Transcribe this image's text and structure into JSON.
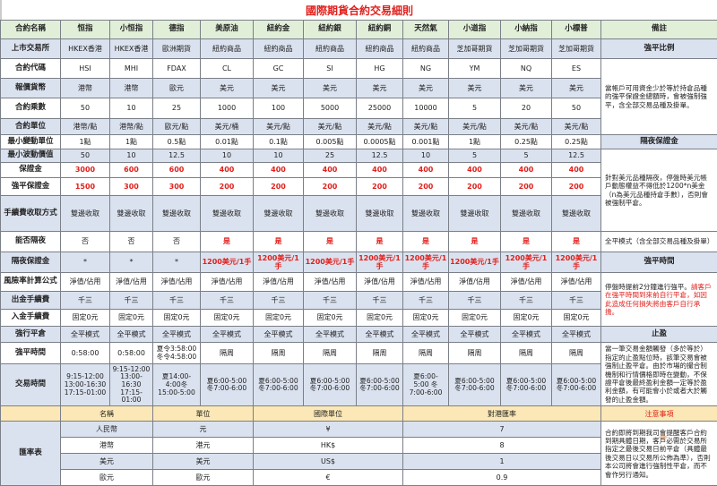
{
  "title": "國際期貨合約交易細則",
  "header": {
    "label": "合約名稱",
    "columns": [
      "恒指",
      "小恒指",
      "德指",
      "美原油",
      "紐約金",
      "紐約銀",
      "紐約銅",
      "天然氣",
      "小道指",
      "小納指",
      "小標普"
    ],
    "remark": "備註"
  },
  "rows": [
    {
      "label": "上市交易所",
      "values": [
        "HKEX香港",
        "HKEX香港",
        "歐洲期貨",
        "紐約商品",
        "紐約商品",
        "紐約商品",
        "紐約商品",
        "紐約商品",
        "芝加哥期貨",
        "芝加哥期貨",
        "芝加哥期貨"
      ],
      "style": "blue"
    },
    {
      "label": "合約代碼",
      "values": [
        "HSI",
        "MHI",
        "FDAX",
        "CL",
        "GC",
        "SI",
        "HG",
        "NG",
        "YM",
        "NQ",
        "ES"
      ],
      "style": "white"
    },
    {
      "label": "報價貨幣",
      "values": [
        "港幣",
        "港幣",
        "歐元",
        "美元",
        "美元",
        "美元",
        "美元",
        "美元",
        "美元",
        "美元",
        "美元"
      ],
      "style": "blue"
    },
    {
      "label": "合約乘數",
      "values": [
        "50",
        "10",
        "25",
        "1000",
        "100",
        "5000",
        "25000",
        "10000",
        "5",
        "20",
        "50"
      ],
      "style": "white"
    },
    {
      "label": "合約單位",
      "values": [
        "港幣/點",
        "港幣/點",
        "歐元/點",
        "美元/桶",
        "美元/點",
        "美元/點",
        "美元/點",
        "美元/點",
        "美元/點",
        "美元/點",
        "美元/點"
      ],
      "style": "blue"
    },
    {
      "label": "最小變動單位",
      "values": [
        "1點",
        "1點",
        "0.5點",
        "0.01點",
        "0.1點",
        "0.005點",
        "0.0005點",
        "0.001點",
        "1點",
        "0.25點",
        "0.25點"
      ],
      "style": "white"
    },
    {
      "label": "最小波動價值",
      "values": [
        "50",
        "10",
        "12.5",
        "10",
        "10",
        "25",
        "12.5",
        "10",
        "5",
        "5",
        "12.5"
      ],
      "style": "blue"
    },
    {
      "label": "保證金",
      "values": [
        "3000",
        "600",
        "600",
        "400",
        "400",
        "400",
        "400",
        "400",
        "400",
        "400",
        "400"
      ],
      "style": "white",
      "red": true
    },
    {
      "label": "強平保證金",
      "values": [
        "1500",
        "300",
        "300",
        "200",
        "200",
        "200",
        "200",
        "200",
        "200",
        "200",
        "200"
      ],
      "style": "white",
      "red": true
    },
    {
      "label": "手續費收取方式",
      "values": [
        "雙邊收取",
        "雙邊收取",
        "雙邊收取",
        "雙邊收取",
        "雙邊收取",
        "雙邊收取",
        "雙邊收取",
        "雙邊收取",
        "雙邊收取",
        "雙邊收取",
        "雙邊收取"
      ],
      "style": "blue"
    },
    {
      "label": "能否隔夜",
      "values": [
        "否",
        "否",
        "否",
        "是",
        "是",
        "是",
        "是",
        "是",
        "是",
        "是",
        "是"
      ],
      "style": "white",
      "redValue": "是"
    },
    {
      "label": "隔夜保證金",
      "values": [
        "*",
        "*",
        "*",
        "1200美元/1手",
        "1200美元/1手",
        "1200美元/1手",
        "1200美元/1手",
        "1200美元/1手",
        "1200美元/1手",
        "1200美元/1手",
        "1200美元/1手"
      ],
      "style": "blue",
      "redValue": "1200美元/1手"
    },
    {
      "label": "風險率計算公式",
      "values": [
        "淨值/佔用",
        "淨值/佔用",
        "淨值/佔用",
        "淨值/佔用",
        "淨值/佔用",
        "淨值/佔用",
        "淨值/佔用",
        "淨值/佔用",
        "淨值/佔用",
        "淨值/佔用",
        "淨值/佔用"
      ],
      "style": "white"
    },
    {
      "label": "出金手續費",
      "values": [
        "千三",
        "千三",
        "千三",
        "千三",
        "千三",
        "千三",
        "千三",
        "千三",
        "千三",
        "千三",
        "千三"
      ],
      "style": "blue"
    },
    {
      "label": "入金手續費",
      "values": [
        "固定0元",
        "固定0元",
        "固定0元",
        "固定0元",
        "固定0元",
        "固定0元",
        "固定0元",
        "固定0元",
        "固定0元",
        "固定0元",
        "固定0元"
      ],
      "style": "white"
    },
    {
      "label": "強行平倉",
      "values": [
        "全平模式",
        "全平模式",
        "全平模式",
        "全平模式",
        "全平模式",
        "全平模式",
        "全平模式",
        "全平模式",
        "全平模式",
        "全平模式",
        "全平模式"
      ],
      "style": "blue"
    },
    {
      "label": "強平時間",
      "values": [
        "0:58:00",
        "0:58:00",
        "夏令3:58:00\n冬令4:58:00",
        "隔周",
        "隔周",
        "隔周",
        "隔周",
        "隔周",
        "隔周",
        "隔周",
        "隔周"
      ],
      "style": "white"
    },
    {
      "label": "交易時間",
      "values": [
        "9:15-12:00\n13:00-16:30\n17:15-01:00",
        "9:15-12:00\n13:00-\n16:30\n17:15-\n01:00",
        "夏14:00-\n4:00冬\n15:00-5:00",
        "夏6:00-5:00\n冬7:00-6:00",
        "夏6:00-5:00\n冬7:00-6:00",
        "夏6:00-5:00\n冬7:00-6:00",
        "夏6:00-5:00\n冬7:00-6:00",
        "夏6:00-\n5:00 冬\n7:00-6:00",
        "夏6:00-5:00\n冬7:00-6:00",
        "夏6:00-5:00\n冬7:00-6:00",
        "夏6:00-5:00\n冬7:00-6:00"
      ],
      "style": "blue"
    }
  ],
  "remarks": [
    {
      "heading": "強平比例",
      "text": "當帳戶可用資金少於等於持倉品種的強平保證金總額時，會被強制強平，含全部交易品種及掛單。"
    },
    {
      "heading": "隔夜保證金",
      "text": "針對美元品種隔夜，停盤時美元帳戶動態權益不得低於1200*n美金（n為美元品種持倉手數），否則會被強制平倉。"
    },
    {
      "heading": "強平模式",
      "text": "全平模式（含全部交易品種及掛單）"
    },
    {
      "heading": "強平時間",
      "text": "停盤時提前2分鐘進行強平。",
      "text_red": "請客戶在強平時間到來前自行平倉，如因此造成任何損失將由客戶自行承擔。"
    },
    {
      "heading": "止盈",
      "text": "當一筆交易金額觸發（多於等於）指定的止盈點位時，該筆交易會被強制止盈平倉。由於市場的撮合制機制和行情價格即時在變動，不保證平倉後最終盈利金額一定等於盈利金額，有可能會小於或者大於觸發的止盈金額。"
    }
  ],
  "fx": {
    "label": "匯率表",
    "headers": [
      "名稱",
      "單位",
      "國際單位",
      "對港匯率"
    ],
    "notice_heading": "注意事項",
    "notice_text": "合約即將到期我司會提醒客戶合約到期具體日期，客戶必需於交易所指定之最後交易日前平倉（具體最後交易日以交易所公佈為準），否則本公司將會進行強制性平倉，而不會作另行通知。",
    "rows": [
      {
        "name": "人民幣",
        "unit": "元",
        "intl": "¥",
        "rate": "7"
      },
      {
        "name": "港幣",
        "unit": "港元",
        "intl": "HK$",
        "rate": "8"
      },
      {
        "name": "美元",
        "unit": "美元",
        "intl": "US$",
        "rate": "1"
      },
      {
        "name": "歐元",
        "unit": "歐元",
        "intl": "€",
        "rate": "0.9"
      }
    ]
  }
}
